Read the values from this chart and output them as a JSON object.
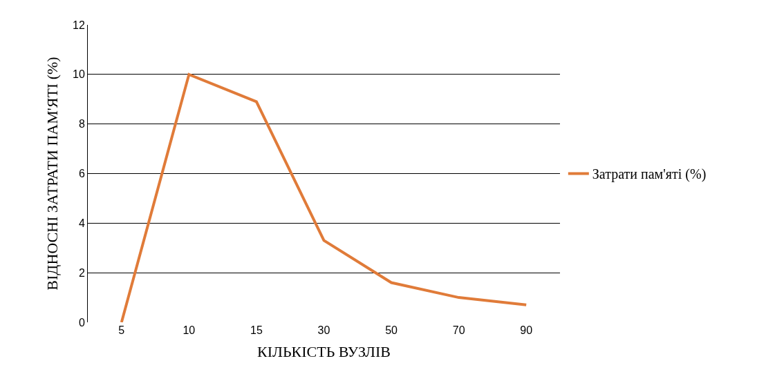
{
  "chart_data": {
    "type": "line",
    "xlabel": "КІЛЬКІСТЬ ВУЗЛІВ",
    "ylabel": "ВІДНОСНІ ЗАТРАТИ ПАМ'ЯТІ (%)",
    "categories": [
      "5",
      "10",
      "15",
      "30",
      "50",
      "70",
      "90"
    ],
    "series": [
      {
        "name": "Затрати пам'яті (%)",
        "color": "#e07b39",
        "values": [
          0,
          10,
          8.9,
          3.3,
          1.6,
          1.0,
          0.7
        ]
      }
    ],
    "ylim": [
      0,
      12
    ],
    "yticks": [
      0,
      2,
      4,
      6,
      8,
      10,
      12
    ],
    "grid": "y",
    "legend": "right",
    "marker": "none",
    "line_style": "solid"
  }
}
